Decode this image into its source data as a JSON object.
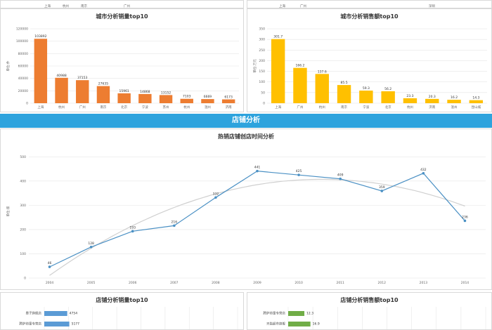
{
  "top_strip": {
    "left_labels": [
      "上海",
      "杭州",
      "南京",
      "",
      "广州"
    ],
    "right_labels": [
      "上海",
      "广州",
      "",
      "",
      "",
      "深圳"
    ]
  },
  "banner": {
    "title": "店铺分析"
  },
  "colors": {
    "orange": "#ed7d31",
    "gold": "#ffc000",
    "blue": "#5b9bd5",
    "green": "#70ad47",
    "banner": "#2ea3dd"
  },
  "chart_data": [
    {
      "type": "bar",
      "title": "城市分析销量top10",
      "ylabel": "单位:件",
      "ylim": [
        0,
        120000
      ],
      "yticks": [
        0,
        20000,
        40000,
        60000,
        80000,
        100000,
        120000
      ],
      "categories": [
        "上海",
        "杭州",
        "广州",
        "南京",
        "北京",
        "宁波",
        "苏州",
        "杭州",
        "温州",
        "济南"
      ],
      "values": [
        103892,
        40988,
        37153,
        27635,
        15961,
        14868,
        13152,
        7103,
        6669,
        6173
      ],
      "labels": [
        "103892",
        "40988",
        "37153",
        "27635",
        "15961",
        "14868",
        "13152",
        "7103",
        "6669",
        "6173"
      ],
      "color": "#ed7d31"
    },
    {
      "type": "bar",
      "title": "城市分析销售额top10",
      "ylabel": "单位:万元",
      "ylim": [
        0,
        350
      ],
      "yticks": [
        0,
        50,
        100,
        150,
        200,
        250,
        300,
        350
      ],
      "categories": [
        "上海",
        "广州",
        "杭州",
        "南京",
        "宁波",
        "北京",
        "杭州",
        "济南",
        "温州",
        "昆山城"
      ],
      "values": [
        301.7,
        166.2,
        137.6,
        85.5,
        59.3,
        56.2,
        23.3,
        20.3,
        16.2,
        14.3
      ],
      "labels": [
        "301.7",
        "166.2",
        "137.6",
        "85.5",
        "59.3",
        "56.2",
        "23.3",
        "20.3",
        "16.2",
        "14.3"
      ],
      "color": "#ffc000"
    },
    {
      "type": "line",
      "title": "热销店铺创店时间分析",
      "ylabel": "单位:家",
      "ylim": [
        0,
        550
      ],
      "yticks": [
        0,
        100,
        200,
        300,
        400,
        500
      ],
      "ytick_labels": [
        "0",
        "100",
        "200",
        "300",
        "400",
        "500"
      ],
      "x": [
        "2004",
        "2005",
        "2006",
        "2007",
        "2008",
        "2009",
        "2010",
        "2011",
        "2012",
        "2013",
        "2014"
      ],
      "values": [
        46,
        128,
        193,
        216,
        332,
        441,
        425,
        409,
        359,
        432,
        236
      ],
      "labels": [
        "46",
        "128",
        "193",
        "216",
        "332",
        "441",
        "425",
        "409",
        "359",
        "432",
        "236"
      ],
      "trendline": true,
      "color": "#4a90c4"
    },
    {
      "type": "bar",
      "orientation": "horizontal",
      "title": "店铺分析销量top10",
      "categories": [
        "墨子旗舰店",
        "腾萨帅童专营店"
      ],
      "values": [
        4754,
        5177
      ],
      "labels": [
        "4754",
        "5177"
      ],
      "color": "#5b9bd5"
    },
    {
      "type": "bar",
      "orientation": "horizontal",
      "title": "店铺分析销售额top10",
      "categories": [
        "腾萨帅童专营店",
        "天猫超市旗舰"
      ],
      "values": [
        12.3,
        16.9
      ],
      "labels": [
        "12.3",
        "16.9"
      ],
      "color": "#70ad47"
    }
  ]
}
